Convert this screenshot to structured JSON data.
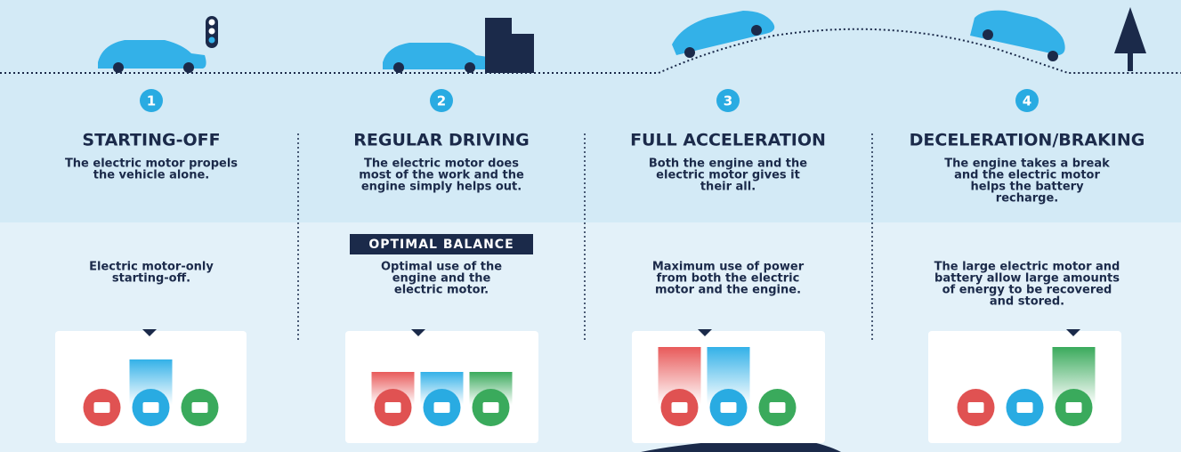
{
  "steps": [
    {
      "number": 1,
      "title": "STARTING-OFF",
      "description": [
        "The electric motor propels",
        "the vehicle alone."
      ],
      "detail": [
        "Electric motor-only",
        "starting-off."
      ]
    },
    {
      "number": 2,
      "title": "REGULAR DRIVING",
      "description": [
        "The electric motor does",
        "most of the work and the",
        "engine simply helps out."
      ],
      "badge": "OPTIMAL BALANCE",
      "detail": [
        "Optimal use of the",
        "engine and the",
        "electric motor."
      ]
    },
    {
      "number": 3,
      "title": "FULL ACCELERATION",
      "description": [
        "Both the engine and the",
        "electric motor gives it",
        "their all."
      ],
      "detail": [
        "Maximum use of power",
        "from both the electric",
        "motor and the engine."
      ]
    },
    {
      "number": 4,
      "title": "DECELERATION/BRAKING",
      "description": [
        "The engine takes a break",
        "and the electric motor",
        "helps the battery",
        "recharge."
      ],
      "detail": [
        "The large electric motor and",
        "battery allow large amounts",
        "of energy to be recovered",
        "and stored."
      ]
    }
  ]
}
